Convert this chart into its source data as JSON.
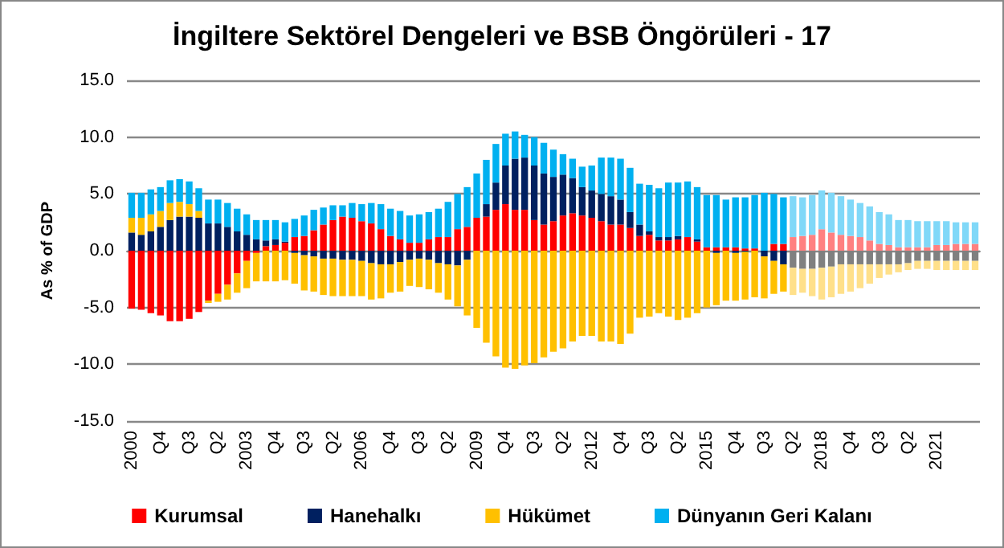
{
  "chart_data": {
    "type": "bar",
    "title": "İngiltere Sektörel Dengeleri ve BSB Öngörüleri - 17",
    "ylabel": "As % of GDP",
    "stacked": true,
    "grid": "y",
    "legend": "bottom",
    "categories": [
      "2000",
      null,
      null,
      "Q4",
      null,
      null,
      "Q3",
      null,
      null,
      "Q2",
      null,
      null,
      "2003",
      null,
      null,
      "Q4",
      null,
      null,
      "Q3",
      null,
      null,
      "Q2",
      null,
      null,
      "2006",
      null,
      null,
      "Q4",
      null,
      null,
      "Q3",
      null,
      null,
      "Q2",
      null,
      null,
      "2009",
      null,
      null,
      "Q4",
      null,
      null,
      "Q3",
      null,
      null,
      "Q2",
      null,
      null,
      "2012",
      null,
      null,
      "Q4",
      null,
      null,
      "Q3",
      null,
      null,
      "Q2",
      null,
      null,
      "2015",
      null,
      null,
      "Q4",
      null,
      null,
      "Q3",
      null,
      null,
      "Q2",
      null,
      null,
      "2018",
      null,
      null,
      "Q4",
      null,
      null,
      "Q3",
      null,
      null,
      "Q2",
      null,
      null,
      "2021",
      null,
      null,
      null,
      null
    ],
    "ylim": [
      -15,
      15
    ],
    "yticks": [
      {
        "value": -15,
        "label": "-15.0"
      },
      {
        "value": -10,
        "label": "-10.0"
      },
      {
        "value": -5,
        "label": "-5.0"
      },
      {
        "value": 0,
        "label": "0.0"
      },
      {
        "value": 5,
        "label": "5.0"
      },
      {
        "value": 10,
        "label": "10.0"
      },
      {
        "value": 15,
        "label": "15.0"
      }
    ],
    "series": [
      {
        "name": "Kurumsal",
        "color": "#ff0000",
        "values": [
          -5.1,
          -5.2,
          -5.5,
          -5.7,
          -6.2,
          -6.2,
          -6.0,
          -5.4,
          -4.4,
          -3.8,
          -3.0,
          -2.0,
          -0.9,
          -0.2,
          0.4,
          0.5,
          0.7,
          1.2,
          1.3,
          1.8,
          2.3,
          2.7,
          3.0,
          2.9,
          2.6,
          2.4,
          1.9,
          1.3,
          1.0,
          0.7,
          0.7,
          1.0,
          1.2,
          1.2,
          1.9,
          2.1,
          2.9,
          3.0,
          3.6,
          4.1,
          3.6,
          3.6,
          2.7,
          2.3,
          2.6,
          3.1,
          3.3,
          3.1,
          2.9,
          2.6,
          2.3,
          2.3,
          2.0,
          1.3,
          1.4,
          0.9,
          0.9,
          1.0,
          1.2,
          0.8,
          0.3,
          0.3,
          0.3,
          0.3,
          0.2,
          0.2,
          0,
          0.6,
          0.6,
          1.2,
          1.3,
          1.4,
          1.9,
          1.6,
          1.4,
          1.3,
          1.2,
          0.9,
          0.6,
          0.5,
          0.3,
          0.3,
          0.3,
          0.3,
          0.5,
          0.5,
          0.6,
          0.6,
          0.6
        ],
        "colors": [
          "#ff0000",
          "#ff0000",
          "#ff0000",
          "#ff0000",
          "#ff0000",
          "#ff0000",
          "#ff0000",
          "#ff0000",
          "#ff0000",
          "#ff0000",
          "#ff0000",
          "#ff0000",
          "#ff0000",
          "#ff0000",
          "#ff0000",
          "#ff0000",
          "#ff0000",
          "#ff0000",
          "#ff0000",
          "#ff0000",
          "#ff0000",
          "#ff0000",
          "#ff0000",
          "#ff0000",
          "#ff0000",
          "#ff0000",
          "#ff0000",
          "#ff0000",
          "#ff0000",
          "#ff0000",
          "#ff0000",
          "#ff0000",
          "#ff0000",
          "#ff0000",
          "#ff0000",
          "#ff0000",
          "#ff0000",
          "#ff0000",
          "#ff0000",
          "#ff0000",
          "#ff0000",
          "#ff0000",
          "#ff0000",
          "#ff0000",
          "#ff0000",
          "#ff0000",
          "#ff0000",
          "#ff0000",
          "#ff0000",
          "#ff0000",
          "#ff0000",
          "#ff0000",
          "#ff0000",
          "#ff0000",
          "#ff0000",
          "#ff0000",
          "#ff0000",
          "#ff0000",
          "#ff0000",
          "#ff0000",
          "#ff0000",
          "#ff0000",
          "#ff0000",
          "#ff0000",
          "#ff0000",
          "#ff0000",
          "#ff0000",
          "#ff0000",
          "#ff0000",
          "#ff8080",
          "#ff8080",
          "#ff8080",
          "#ff8080",
          "#ff8080",
          "#ff8080",
          "#ff8080",
          "#ff8080",
          "#ff8080",
          "#ff8080",
          "#ff8080",
          "#ff8080",
          "#ff8080",
          "#ff8080",
          "#ff8080",
          "#ff8080",
          "#ff8080",
          "#ff8080",
          "#ff8080",
          "#ff8080"
        ]
      },
      {
        "name": "Hanehalkı",
        "color": "#002060",
        "values": [
          1.6,
          1.4,
          1.7,
          2.1,
          2.7,
          3.0,
          3.0,
          2.9,
          2.4,
          2.4,
          2.1,
          1.7,
          1.4,
          1.0,
          0.5,
          0.5,
          0.1,
          -0.2,
          -0.4,
          -0.5,
          -0.7,
          -0.7,
          -0.8,
          -0.8,
          -0.9,
          -1.1,
          -1.2,
          -1.2,
          -1.0,
          -0.8,
          -0.7,
          -0.8,
          -1.1,
          -1.2,
          -1.3,
          -0.8,
          0,
          1.1,
          2.4,
          3.4,
          4.5,
          4.6,
          4.8,
          4.5,
          3.9,
          3.6,
          3.1,
          2.5,
          2.4,
          2.4,
          2.5,
          2.2,
          1.4,
          1.0,
          0.3,
          0.3,
          0.3,
          0.3,
          0,
          0.2,
          0,
          -0.2,
          0,
          -0.2,
          -0.1,
          0,
          -0.5,
          -0.9,
          -1.2,
          -1.5,
          -1.6,
          -1.6,
          -1.5,
          -1.4,
          -1.2,
          -1.2,
          -1.2,
          -1.2,
          -1.2,
          -1.2,
          -1.2,
          -1.1,
          -0.9,
          -0.9,
          -0.9,
          -0.9,
          -0.9,
          -0.9,
          -0.9
        ],
        "colors": [
          "#002060",
          "#002060",
          "#002060",
          "#002060",
          "#002060",
          "#002060",
          "#002060",
          "#002060",
          "#002060",
          "#002060",
          "#002060",
          "#002060",
          "#002060",
          "#002060",
          "#002060",
          "#002060",
          "#002060",
          "#002060",
          "#002060",
          "#002060",
          "#002060",
          "#002060",
          "#002060",
          "#002060",
          "#002060",
          "#002060",
          "#002060",
          "#002060",
          "#002060",
          "#002060",
          "#002060",
          "#002060",
          "#002060",
          "#002060",
          "#002060",
          "#002060",
          "#002060",
          "#002060",
          "#002060",
          "#002060",
          "#002060",
          "#002060",
          "#002060",
          "#002060",
          "#002060",
          "#002060",
          "#002060",
          "#002060",
          "#002060",
          "#002060",
          "#002060",
          "#002060",
          "#002060",
          "#002060",
          "#002060",
          "#002060",
          "#002060",
          "#002060",
          "#002060",
          "#002060",
          "#002060",
          "#002060",
          "#002060",
          "#002060",
          "#002060",
          "#002060",
          "#002060",
          "#002060",
          "#002060",
          "#808080",
          "#808080",
          "#808080",
          "#808080",
          "#808080",
          "#808080",
          "#808080",
          "#808080",
          "#808080",
          "#808080",
          "#808080",
          "#808080",
          "#808080",
          "#808080",
          "#808080",
          "#808080",
          "#808080",
          "#808080",
          "#808080",
          "#808080"
        ]
      },
      {
        "name": "Hükümet",
        "color": "#ffc000",
        "values": [
          1.3,
          1.5,
          1.5,
          1.4,
          1.5,
          1.3,
          1.1,
          0.6,
          -0.2,
          -0.7,
          -1.3,
          -1.7,
          -2.4,
          -2.5,
          -2.7,
          -2.7,
          -2.6,
          -2.7,
          -3.1,
          -3.1,
          -3.2,
          -3.3,
          -3.2,
          -3.2,
          -3.1,
          -3.2,
          -3.0,
          -2.5,
          -2.6,
          -2.3,
          -2.5,
          -2.6,
          -2.6,
          -3.1,
          -3.6,
          -4.9,
          -6.8,
          -8.1,
          -9.3,
          -10.3,
          -10.4,
          -10.1,
          -9.9,
          -9.4,
          -8.9,
          -8.6,
          -8.0,
          -7.5,
          -7.5,
          -8.0,
          -8.0,
          -8.2,
          -7.3,
          -5.9,
          -5.8,
          -5.5,
          -5.8,
          -6.1,
          -5.9,
          -5.5,
          -5.0,
          -4.6,
          -4.4,
          -4.2,
          -4.2,
          -4.1,
          -3.7,
          -2.9,
          -2.4,
          -2.4,
          -2.1,
          -2.4,
          -2.8,
          -2.7,
          -2.6,
          -2.4,
          -2.1,
          -1.7,
          -1.2,
          -0.9,
          -0.7,
          -0.6,
          -0.7,
          -0.7,
          -0.8,
          -0.8,
          -0.8,
          -0.8,
          -0.8
        ],
        "colors": [
          "#ffc000",
          "#ffc000",
          "#ffc000",
          "#ffc000",
          "#ffc000",
          "#ffc000",
          "#ffc000",
          "#ffc000",
          "#ffc000",
          "#ffc000",
          "#ffc000",
          "#ffc000",
          "#ffc000",
          "#ffc000",
          "#ffc000",
          "#ffc000",
          "#ffc000",
          "#ffc000",
          "#ffc000",
          "#ffc000",
          "#ffc000",
          "#ffc000",
          "#ffc000",
          "#ffc000",
          "#ffc000",
          "#ffc000",
          "#ffc000",
          "#ffc000",
          "#ffc000",
          "#ffc000",
          "#ffc000",
          "#ffc000",
          "#ffc000",
          "#ffc000",
          "#ffc000",
          "#ffc000",
          "#ffc000",
          "#ffc000",
          "#ffc000",
          "#ffc000",
          "#ffc000",
          "#ffc000",
          "#ffc000",
          "#ffc000",
          "#ffc000",
          "#ffc000",
          "#ffc000",
          "#ffc000",
          "#ffc000",
          "#ffc000",
          "#ffc000",
          "#ffc000",
          "#ffc000",
          "#ffc000",
          "#ffc000",
          "#ffc000",
          "#ffc000",
          "#ffc000",
          "#ffc000",
          "#ffc000",
          "#ffc000",
          "#ffc000",
          "#ffc000",
          "#ffc000",
          "#ffc000",
          "#ffc000",
          "#ffc000",
          "#ffc000",
          "#ffc000",
          "#ffe08a",
          "#ffe08a",
          "#ffe08a",
          "#ffe08a",
          "#ffe08a",
          "#ffe08a",
          "#ffe08a",
          "#ffe08a",
          "#ffe08a",
          "#ffe08a",
          "#ffe08a",
          "#ffe08a",
          "#ffe08a",
          "#ffe08a",
          "#ffe08a",
          "#ffe08a",
          "#ffe08a",
          "#ffe08a",
          "#ffe08a",
          "#ffe08a"
        ]
      },
      {
        "name": "Dünyanın Geri Kalanı",
        "color": "#00b0f0",
        "values": [
          2.2,
          2.2,
          2.2,
          2.1,
          2.0,
          2.0,
          2.0,
          2.0,
          2.1,
          2.1,
          2.1,
          2.0,
          1.8,
          1.7,
          1.8,
          1.7,
          1.7,
          1.6,
          1.8,
          1.8,
          1.5,
          1.3,
          1.0,
          1.3,
          1.5,
          1.8,
          2.2,
          2.4,
          2.5,
          2.4,
          2.5,
          2.4,
          2.5,
          3.1,
          3.1,
          3.5,
          3.9,
          3.9,
          3.4,
          2.8,
          2.4,
          2.0,
          2.5,
          2.7,
          2.4,
          1.8,
          1.7,
          1.8,
          2.2,
          3.2,
          3.4,
          3.6,
          3.9,
          3.6,
          4.1,
          4.3,
          4.8,
          4.7,
          4.9,
          4.6,
          4.6,
          4.6,
          4.2,
          4.4,
          4.5,
          4.7,
          5.1,
          4.4,
          4.1,
          3.6,
          3.4,
          3.5,
          3.4,
          3.5,
          3.4,
          3.2,
          3.0,
          3.0,
          2.8,
          2.7,
          2.4,
          2.4,
          2.3,
          2.3,
          2.1,
          2.1,
          1.9,
          1.9,
          1.9
        ],
        "colors": [
          "#00b0f0",
          "#00b0f0",
          "#00b0f0",
          "#00b0f0",
          "#00b0f0",
          "#00b0f0",
          "#00b0f0",
          "#00b0f0",
          "#00b0f0",
          "#00b0f0",
          "#00b0f0",
          "#00b0f0",
          "#00b0f0",
          "#00b0f0",
          "#00b0f0",
          "#00b0f0",
          "#00b0f0",
          "#00b0f0",
          "#00b0f0",
          "#00b0f0",
          "#00b0f0",
          "#00b0f0",
          "#00b0f0",
          "#00b0f0",
          "#00b0f0",
          "#00b0f0",
          "#00b0f0",
          "#00b0f0",
          "#00b0f0",
          "#00b0f0",
          "#00b0f0",
          "#00b0f0",
          "#00b0f0",
          "#00b0f0",
          "#00b0f0",
          "#00b0f0",
          "#00b0f0",
          "#00b0f0",
          "#00b0f0",
          "#00b0f0",
          "#00b0f0",
          "#00b0f0",
          "#00b0f0",
          "#00b0f0",
          "#00b0f0",
          "#00b0f0",
          "#00b0f0",
          "#00b0f0",
          "#00b0f0",
          "#00b0f0",
          "#00b0f0",
          "#00b0f0",
          "#00b0f0",
          "#00b0f0",
          "#00b0f0",
          "#00b0f0",
          "#00b0f0",
          "#00b0f0",
          "#00b0f0",
          "#00b0f0",
          "#00b0f0",
          "#00b0f0",
          "#00b0f0",
          "#00b0f0",
          "#00b0f0",
          "#00b0f0",
          "#00b0f0",
          "#00b0f0",
          "#00b0f0",
          "#80d8f8",
          "#80d8f8",
          "#80d8f8",
          "#80d8f8",
          "#80d8f8",
          "#80d8f8",
          "#80d8f8",
          "#80d8f8",
          "#80d8f8",
          "#80d8f8",
          "#80d8f8",
          "#80d8f8",
          "#80d8f8",
          "#80d8f8",
          "#80d8f8",
          "#80d8f8",
          "#80d8f8",
          "#80d8f8",
          "#80d8f8",
          "#80d8f8"
        ]
      }
    ]
  }
}
